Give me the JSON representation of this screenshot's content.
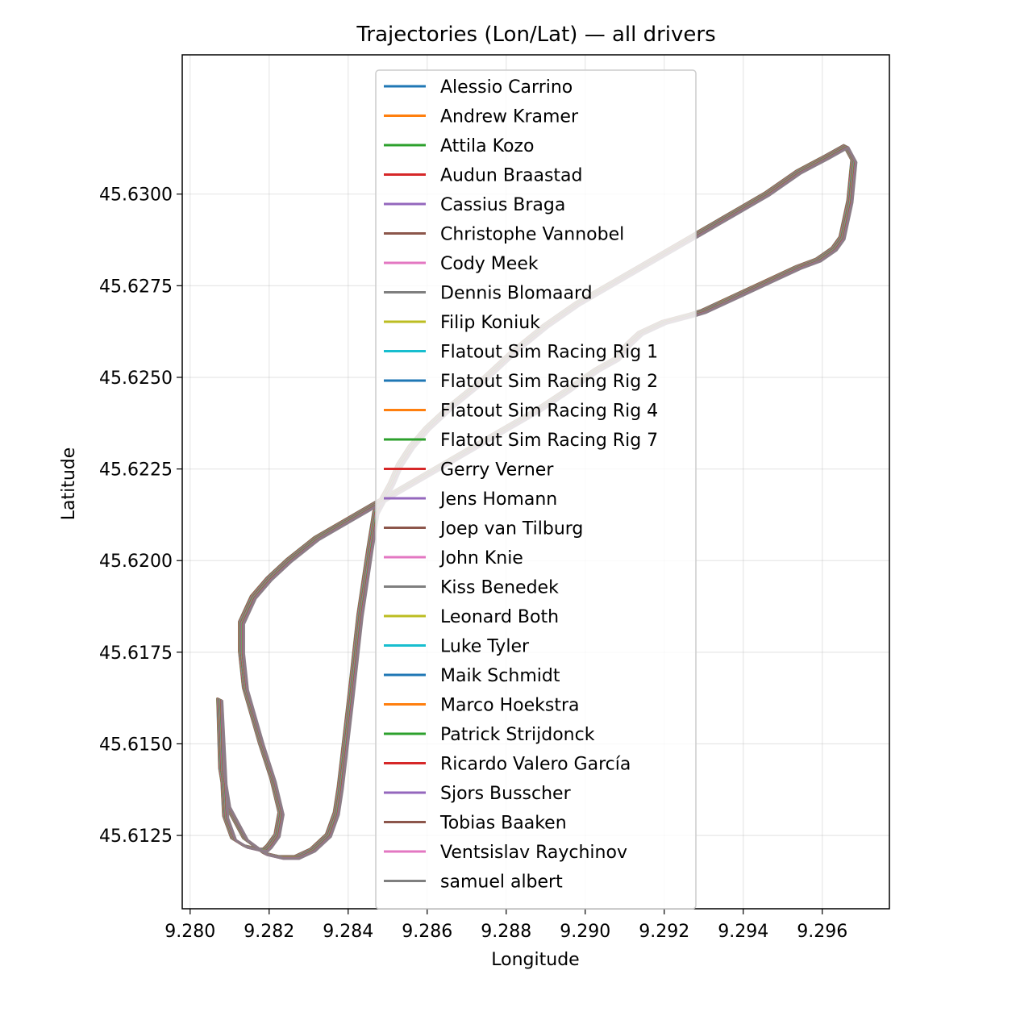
{
  "chart_data": {
    "type": "line",
    "title": "Trajectories (Lon/Lat) — all drivers",
    "xlabel": "Longitude",
    "ylabel": "Latitude",
    "xlim": [
      9.2798,
      9.2977
    ],
    "ylim": [
      45.6105,
      45.6338
    ],
    "xticks": [
      9.28,
      9.282,
      9.284,
      9.286,
      9.288,
      9.29,
      9.292,
      9.294,
      9.296
    ],
    "xtick_labels": [
      "9.280",
      "9.282",
      "9.284",
      "9.286",
      "9.288",
      "9.290",
      "9.292",
      "9.294",
      "9.296"
    ],
    "yticks": [
      45.6125,
      45.615,
      45.6175,
      45.62,
      45.6225,
      45.625,
      45.6275,
      45.63
    ],
    "ytick_labels": [
      "45.6125",
      "45.6150",
      "45.6175",
      "45.6200",
      "45.6225",
      "45.6250",
      "45.6275",
      "45.6300"
    ],
    "grid": true,
    "legend_position": "top-center",
    "track": {
      "x": [
        9.28075,
        9.2808,
        9.28095,
        9.2814,
        9.2819,
        9.2823,
        9.2827,
        9.2831,
        9.2835,
        9.2837,
        9.2838,
        9.28405,
        9.2843,
        9.28455,
        9.2847,
        9.2849,
        9.2851,
        9.2853,
        9.2856,
        9.286,
        9.2866,
        9.2874,
        9.2882,
        9.289,
        9.2898,
        9.2906,
        9.2914,
        9.2922,
        9.293,
        9.2938,
        9.2946,
        9.2954,
        9.2961,
        9.2966,
        9.2968,
        9.2967,
        9.2966,
        9.2965,
        9.2963,
        9.2959,
        9.2954,
        9.2946,
        9.2938,
        9.293,
        9.2927,
        9.292,
        9.2914,
        9.2911,
        9.2908,
        9.2903,
        9.2895,
        9.2888,
        9.288,
        9.2872,
        9.2864,
        9.2856,
        9.2848,
        9.284,
        9.2832,
        9.2825,
        9.282,
        9.2816,
        9.2813,
        9.2813,
        9.2814,
        9.2818,
        9.2821,
        9.2823,
        9.2822,
        9.282,
        9.2819,
        9.2818,
        9.2814,
        9.2811,
        9.2809,
        9.28075
      ],
      "y": [
        45.6162,
        45.6143,
        45.6133,
        45.6124,
        45.612,
        45.6119,
        45.6119,
        45.6121,
        45.6125,
        45.6131,
        45.6138,
        45.6161,
        45.6185,
        45.6203,
        45.6213,
        45.6217,
        45.6221,
        45.6226,
        45.6231,
        45.6236,
        45.6242,
        45.6249,
        45.6257,
        45.6264,
        45.627,
        45.6275,
        45.628,
        45.6285,
        45.629,
        45.6295,
        45.63,
        45.6306,
        45.631,
        45.6313,
        45.6309,
        45.6298,
        45.6293,
        45.6288,
        45.6285,
        45.6282,
        45.628,
        45.6276,
        45.6272,
        45.6268,
        45.6267,
        45.6265,
        45.6262,
        45.6259,
        45.6255,
        45.6252,
        45.6246,
        45.6241,
        45.6236,
        45.6231,
        45.6226,
        45.6221,
        45.6216,
        45.6211,
        45.6206,
        45.62,
        45.6195,
        45.619,
        45.6183,
        45.6175,
        45.6165,
        45.615,
        45.614,
        45.6131,
        45.6125,
        45.6122,
        45.6121,
        45.6121,
        45.6122,
        45.6124,
        45.613,
        45.6162
      ]
    },
    "series": [
      {
        "name": "Alessio Carrino",
        "color": "#1f77b4"
      },
      {
        "name": "Andrew Kramer",
        "color": "#ff7f0e"
      },
      {
        "name": "Attila Kozo",
        "color": "#2ca02c"
      },
      {
        "name": "Audun Braastad",
        "color": "#d62728"
      },
      {
        "name": "Cassius Braga",
        "color": "#9467bd"
      },
      {
        "name": "Christophe Vannobel",
        "color": "#8c564b"
      },
      {
        "name": "Cody Meek",
        "color": "#e377c2"
      },
      {
        "name": "Dennis Blomaard",
        "color": "#7f7f7f"
      },
      {
        "name": "Filip Koniuk",
        "color": "#bcbd22"
      },
      {
        "name": "Flatout Sim Racing Rig 1",
        "color": "#17becf"
      },
      {
        "name": "Flatout Sim Racing Rig 2",
        "color": "#1f77b4"
      },
      {
        "name": "Flatout Sim Racing Rig 4",
        "color": "#ff7f0e"
      },
      {
        "name": "Flatout Sim Racing Rig 7",
        "color": "#2ca02c"
      },
      {
        "name": "Gerry Verner",
        "color": "#d62728"
      },
      {
        "name": "Jens Homann",
        "color": "#9467bd"
      },
      {
        "name": "Joep van Tilburg",
        "color": "#8c564b"
      },
      {
        "name": "John Knie",
        "color": "#e377c2"
      },
      {
        "name": "Kiss Benedek",
        "color": "#7f7f7f"
      },
      {
        "name": "Leonard Both",
        "color": "#bcbd22"
      },
      {
        "name": "Luke Tyler",
        "color": "#17becf"
      },
      {
        "name": "Maik Schmidt",
        "color": "#1f77b4"
      },
      {
        "name": "Marco Hoekstra",
        "color": "#ff7f0e"
      },
      {
        "name": "Patrick Strijdonck",
        "color": "#2ca02c"
      },
      {
        "name": "Ricardo Valero García",
        "color": "#d62728"
      },
      {
        "name": "Sjors Busscher",
        "color": "#9467bd"
      },
      {
        "name": "Tobias Baaken",
        "color": "#8c564b"
      },
      {
        "name": "Ventsislav Raychinov",
        "color": "#e377c2"
      },
      {
        "name": "samuel albert",
        "color": "#7f7f7f"
      }
    ]
  }
}
